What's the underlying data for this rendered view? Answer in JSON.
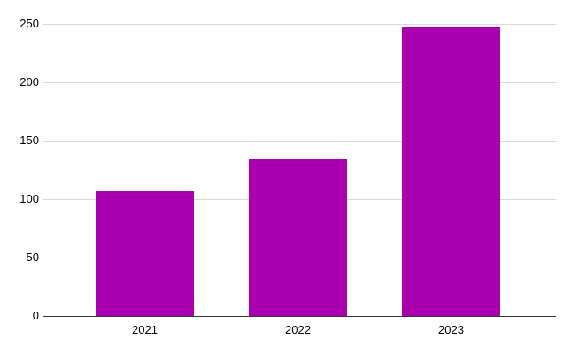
{
  "chart_data": {
    "type": "bar",
    "categories": [
      "2021",
      "2022",
      "2023"
    ],
    "values": [
      107,
      134,
      247
    ],
    "yticks": [
      0,
      50,
      100,
      150,
      200,
      250
    ],
    "ylim": [
      0,
      250
    ],
    "grid": true,
    "legend": false,
    "title": "",
    "bar_color": "#AA00AF",
    "background_color": "#FFFFFF",
    "gridline_color": "#D9D9D9",
    "axis_line_color": "#333333",
    "tick_label_color": "#000000"
  }
}
